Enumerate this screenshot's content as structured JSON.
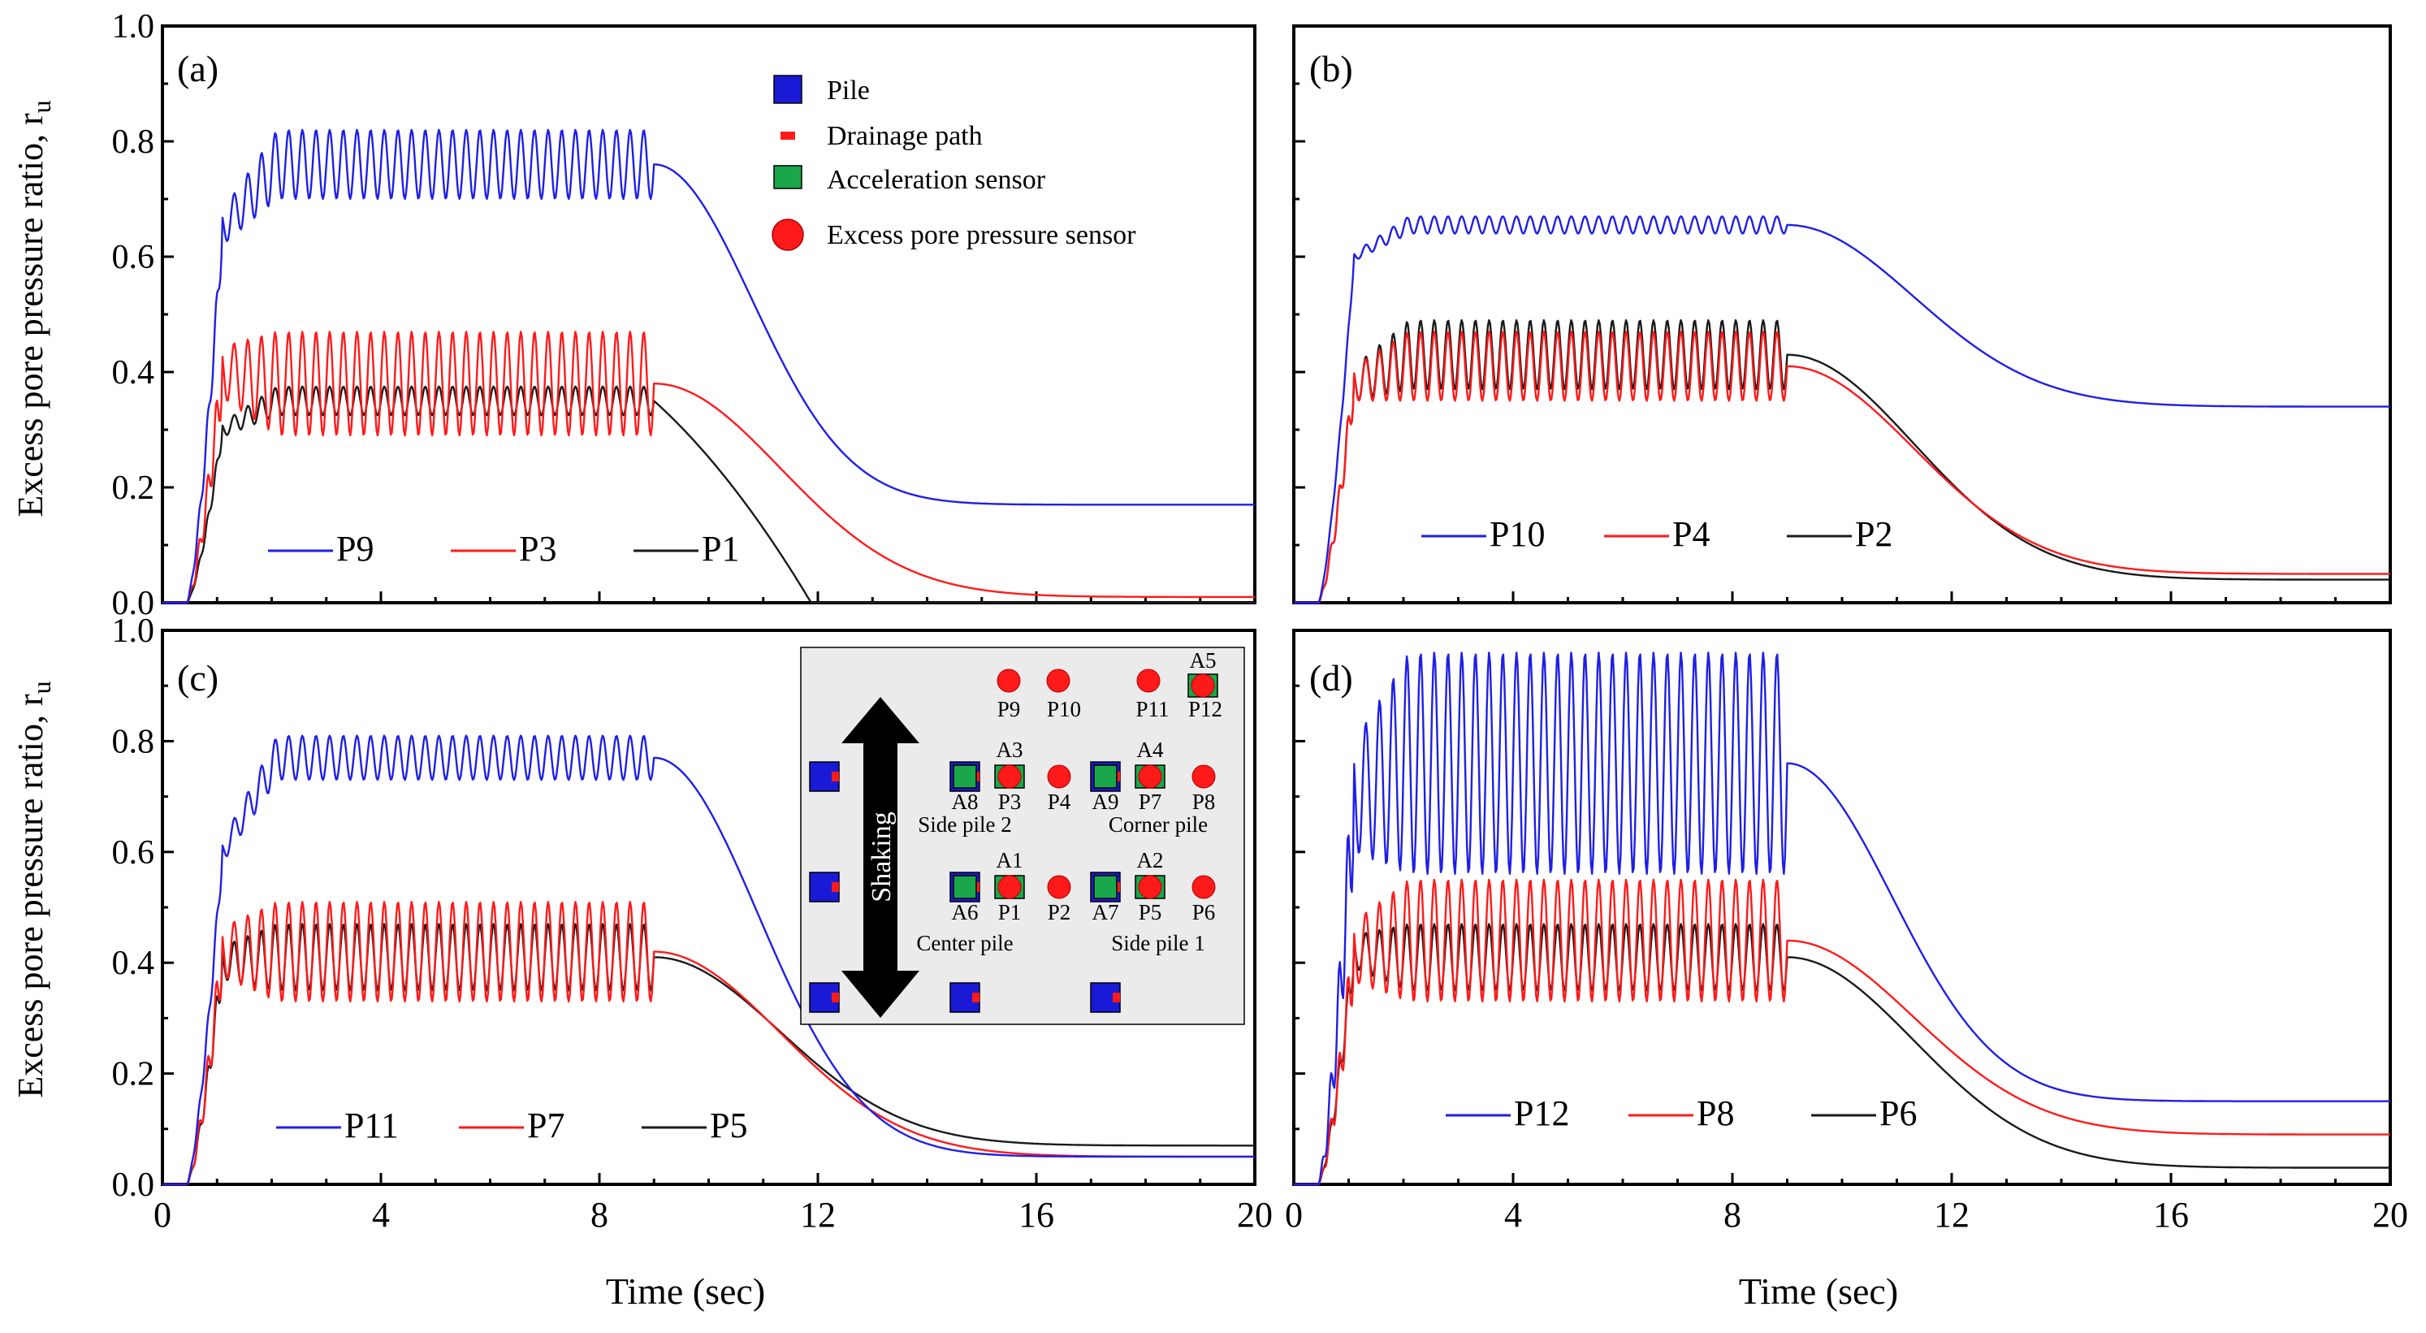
{
  "figure": {
    "ylabel": "Excess pore pressure ratio, r",
    "ylabel_sub": "u",
    "xlabel": "Time (sec)",
    "x_ticks": [
      "0",
      "4",
      "8",
      "12",
      "16",
      "20"
    ],
    "y_ticks": [
      "0.0",
      "0.2",
      "0.4",
      "0.6",
      "0.8",
      "1.0"
    ]
  },
  "colors": {
    "blue": "#1f1fe8",
    "red": "#ff1a1a",
    "black": "#1a1a1a",
    "green": "#1aa64a",
    "pile": "#1a1ad6"
  },
  "chart_data": [
    {
      "type": "line",
      "panel_label": "(a)",
      "xlim": [
        0,
        20
      ],
      "ylim": [
        0,
        1.0
      ],
      "series": [
        {
          "name": "P9",
          "color": "blue",
          "rise": 0.65,
          "base": 0.76,
          "amp": 0.06,
          "end": 0.17,
          "diss": "steep"
        },
        {
          "name": "P3",
          "color": "red",
          "rise": 0.4,
          "base": 0.38,
          "amp": 0.09,
          "end": 0.01,
          "diss": "slow"
        },
        {
          "name": "P1",
          "color": "black",
          "rise": 0.3,
          "base": 0.35,
          "amp": 0.025,
          "end": 0.0,
          "diss": "fast"
        }
      ]
    },
    {
      "type": "line",
      "panel_label": "(b)",
      "xlim": [
        0,
        20
      ],
      "ylim": [
        0,
        1.0
      ],
      "series": [
        {
          "name": "P10",
          "color": "blue",
          "rise": 0.6,
          "base": 0.655,
          "amp": 0.015,
          "end": 0.34,
          "diss": "slow"
        },
        {
          "name": "P4",
          "color": "red",
          "rise": 0.38,
          "base": 0.41,
          "amp": 0.06,
          "end": 0.05,
          "diss": "slow"
        },
        {
          "name": "P2",
          "color": "black",
          "rise": 0.38,
          "base": 0.43,
          "amp": 0.06,
          "end": 0.04,
          "diss": "slow"
        }
      ]
    },
    {
      "type": "line",
      "panel_label": "(c)",
      "xlim": [
        0,
        20
      ],
      "ylim": [
        0,
        1.0
      ],
      "series": [
        {
          "name": "P11",
          "color": "blue",
          "rise": 0.6,
          "base": 0.77,
          "amp": 0.04,
          "end": 0.05,
          "diss": "mid"
        },
        {
          "name": "P7",
          "color": "red",
          "rise": 0.42,
          "base": 0.42,
          "amp": 0.09,
          "end": 0.05,
          "diss": "slow"
        },
        {
          "name": "P5",
          "color": "black",
          "rise": 0.4,
          "base": 0.41,
          "amp": 0.06,
          "end": 0.07,
          "diss": "slow"
        }
      ]
    },
    {
      "type": "line",
      "panel_label": "(d)",
      "xlim": [
        0,
        20
      ],
      "ylim": [
        0,
        1.0
      ],
      "series": [
        {
          "name": "P12",
          "color": "blue",
          "rise": 0.7,
          "base": 0.76,
          "amp": 0.2,
          "end": 0.15,
          "diss": "mid"
        },
        {
          "name": "P8",
          "color": "red",
          "rise": 0.42,
          "base": 0.44,
          "amp": 0.11,
          "end": 0.09,
          "diss": "slow"
        },
        {
          "name": "P6",
          "color": "black",
          "rise": 0.42,
          "base": 0.41,
          "amp": 0.06,
          "end": 0.03,
          "diss": "slow"
        }
      ]
    }
  ],
  "legend_symbols": [
    "Pile",
    "Drainage path",
    "Acceleration  sensor",
    "Excess pore pressure sensor"
  ],
  "layout_inset": {
    "shaking": "Shaking",
    "sensors": {
      "P9": "P9",
      "P10": "P10",
      "P11": "P11",
      "P12": "P12",
      "P3": "P3",
      "P4": "P4",
      "P7": "P7",
      "P8": "P8",
      "P1": "P1",
      "P2": "P2",
      "P5": "P5",
      "P6": "P6"
    },
    "accels": {
      "A1": "A1",
      "A2": "A2",
      "A3": "A3",
      "A4": "A4",
      "A5": "A5",
      "A6": "A6",
      "A7": "A7",
      "A8": "A8",
      "A9": "A9"
    },
    "piles": {
      "side2": "Side  pile 2",
      "corner": "Corner pile",
      "center": "Center pile",
      "side1": "Side  pile 1"
    }
  }
}
